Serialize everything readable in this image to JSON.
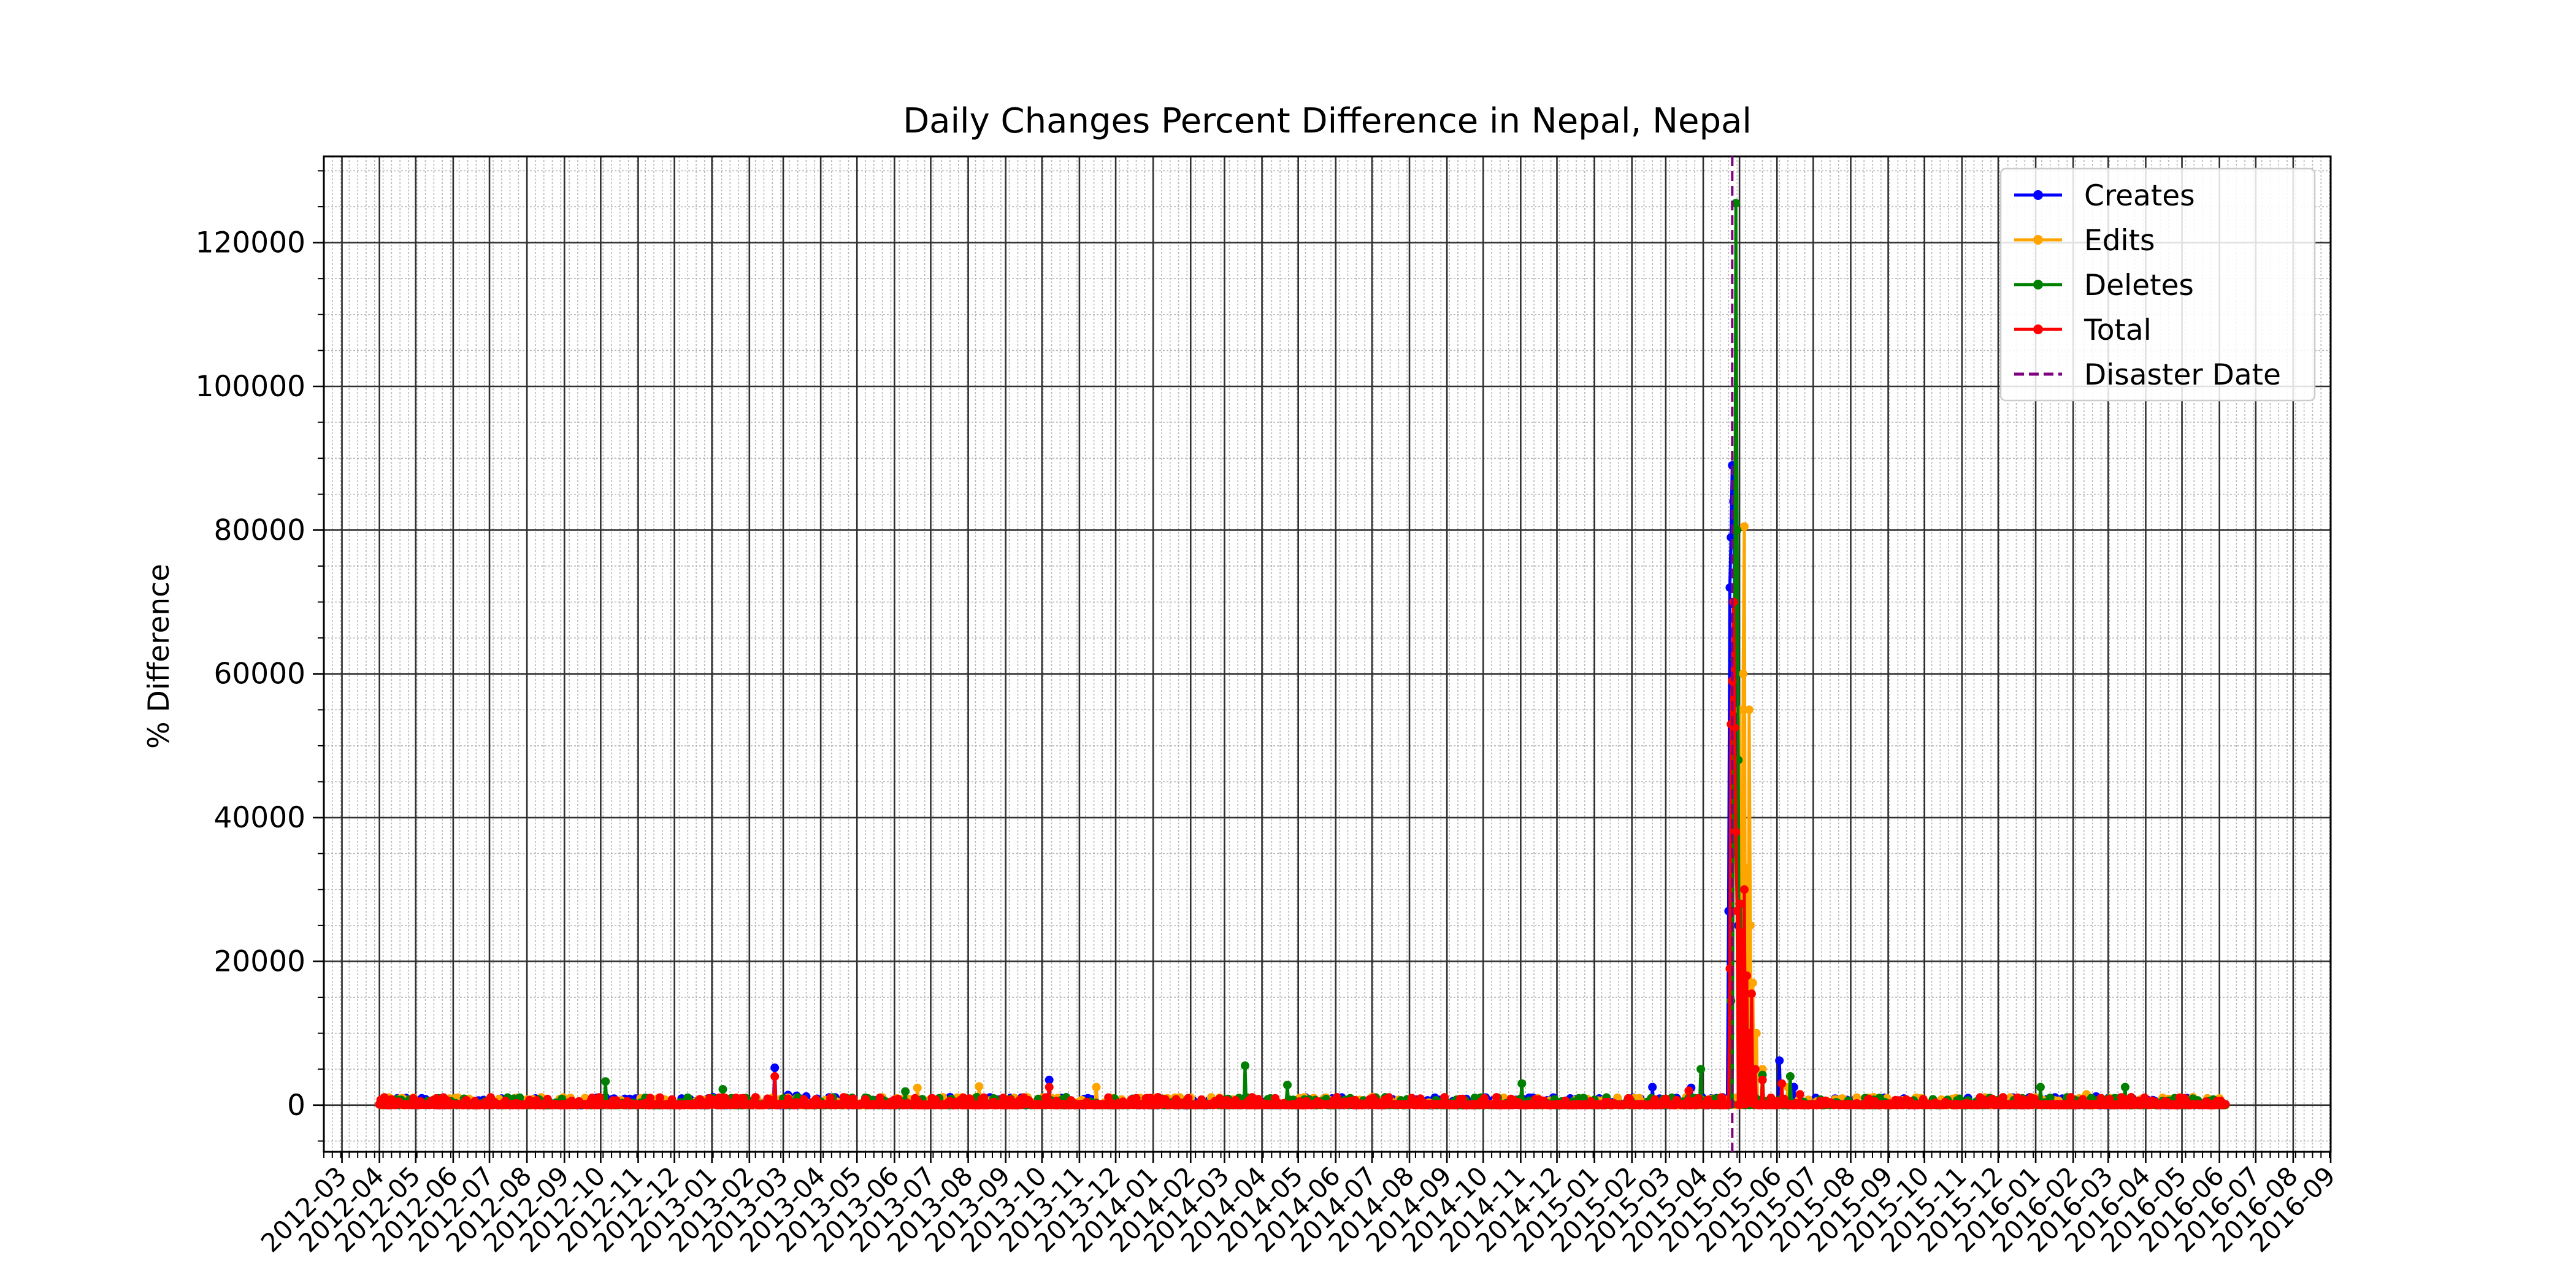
{
  "chart_data": {
    "type": "line",
    "title": "Daily Changes Percent Difference in Nepal, Nepal",
    "xlabel": "",
    "ylabel": "% Difference",
    "x_start": "2012-04-01",
    "x_end": "2016-06-06",
    "xlim": [
      "2012-02-15",
      "2016-09-01"
    ],
    "ylim": [
      -6500,
      132000
    ],
    "x_ticks": [
      "2012-03",
      "2012-04",
      "2012-05",
      "2012-06",
      "2012-07",
      "2012-08",
      "2012-09",
      "2012-10",
      "2012-11",
      "2012-12",
      "2013-01",
      "2013-02",
      "2013-03",
      "2013-04",
      "2013-05",
      "2013-06",
      "2013-07",
      "2013-08",
      "2013-09",
      "2013-10",
      "2013-11",
      "2013-12",
      "2014-01",
      "2014-02",
      "2014-03",
      "2014-04",
      "2014-05",
      "2014-06",
      "2014-07",
      "2014-08",
      "2014-09",
      "2014-10",
      "2014-11",
      "2014-12",
      "2015-01",
      "2015-02",
      "2015-03",
      "2015-04",
      "2015-05",
      "2015-06",
      "2015-07",
      "2015-08",
      "2015-09",
      "2015-10",
      "2015-11",
      "2015-12",
      "2016-01",
      "2016-02",
      "2016-03",
      "2016-04",
      "2016-05",
      "2016-06",
      "2016-07",
      "2016-08",
      "2016-09"
    ],
    "y_ticks": [
      0,
      20000,
      40000,
      60000,
      80000,
      100000,
      120000
    ],
    "disaster_date": "2015-04-25",
    "grid": true,
    "legend_position": "upper right",
    "series": [
      {
        "name": "Creates",
        "color": "#0000ff",
        "peaks": [
          {
            "date": "2012-08-03",
            "value": 700
          },
          {
            "date": "2013-02-22",
            "value": 5200
          },
          {
            "date": "2013-03-05",
            "value": 1400
          },
          {
            "date": "2013-03-12",
            "value": 1300
          },
          {
            "date": "2013-03-20",
            "value": 1200
          },
          {
            "date": "2013-10-07",
            "value": 3500
          },
          {
            "date": "2015-02-18",
            "value": 2500
          },
          {
            "date": "2015-03-22",
            "value": 2400
          },
          {
            "date": "2015-04-22",
            "value": 27000
          },
          {
            "date": "2015-04-23",
            "value": 72000
          },
          {
            "date": "2015-04-24",
            "value": 79000
          },
          {
            "date": "2015-04-25",
            "value": 89000
          },
          {
            "date": "2015-04-26",
            "value": 84000
          },
          {
            "date": "2015-04-27",
            "value": 70000
          },
          {
            "date": "2015-04-28",
            "value": 52000
          },
          {
            "date": "2015-04-29",
            "value": 35000
          },
          {
            "date": "2015-04-30",
            "value": 25000
          },
          {
            "date": "2015-05-02",
            "value": 17000
          },
          {
            "date": "2015-05-05",
            "value": 12000
          },
          {
            "date": "2015-05-08",
            "value": 8000
          },
          {
            "date": "2015-05-12",
            "value": 5000
          },
          {
            "date": "2015-05-20",
            "value": 3500
          },
          {
            "date": "2015-06-03",
            "value": 6200
          },
          {
            "date": "2015-06-15",
            "value": 2500
          },
          {
            "date": "2016-02-20",
            "value": 1200
          },
          {
            "date": "2016-05-10",
            "value": 1000
          }
        ]
      },
      {
        "name": "Edits",
        "color": "#ffa500",
        "peaks": [
          {
            "date": "2013-06-20",
            "value": 2400
          },
          {
            "date": "2013-08-10",
            "value": 2600
          },
          {
            "date": "2013-11-15",
            "value": 2500
          },
          {
            "date": "2015-05-01",
            "value": 55000
          },
          {
            "date": "2015-05-04",
            "value": 60000
          },
          {
            "date": "2015-05-05",
            "value": 80500
          },
          {
            "date": "2015-05-07",
            "value": 33000
          },
          {
            "date": "2015-05-09",
            "value": 55000
          },
          {
            "date": "2015-05-10",
            "value": 25000
          },
          {
            "date": "2015-05-12",
            "value": 17000
          },
          {
            "date": "2015-05-15",
            "value": 10000
          },
          {
            "date": "2015-05-20",
            "value": 5000
          },
          {
            "date": "2015-06-10",
            "value": 2500
          },
          {
            "date": "2016-02-12",
            "value": 1500
          }
        ]
      },
      {
        "name": "Deletes",
        "color": "#008000",
        "peaks": [
          {
            "date": "2012-10-05",
            "value": 3300
          },
          {
            "date": "2013-01-10",
            "value": 2200
          },
          {
            "date": "2013-06-10",
            "value": 1900
          },
          {
            "date": "2014-03-18",
            "value": 5500
          },
          {
            "date": "2014-04-22",
            "value": 2800
          },
          {
            "date": "2014-11-02",
            "value": 3000
          },
          {
            "date": "2015-03-30",
            "value": 5000
          },
          {
            "date": "2015-04-24",
            "value": 14500
          },
          {
            "date": "2015-04-26",
            "value": 48000
          },
          {
            "date": "2015-04-27",
            "value": 62000
          },
          {
            "date": "2015-04-28",
            "value": 125500
          },
          {
            "date": "2015-04-29",
            "value": 80000
          },
          {
            "date": "2015-04-30",
            "value": 48000
          },
          {
            "date": "2015-05-02",
            "value": 28000
          },
          {
            "date": "2015-05-04",
            "value": 11000
          },
          {
            "date": "2015-05-07",
            "value": 7500
          },
          {
            "date": "2015-05-12",
            "value": 5000
          },
          {
            "date": "2015-05-20",
            "value": 4200
          },
          {
            "date": "2015-06-12",
            "value": 4000
          },
          {
            "date": "2016-01-05",
            "value": 2500
          },
          {
            "date": "2016-03-15",
            "value": 2500
          }
        ]
      },
      {
        "name": "Total",
        "color": "#ff0000",
        "peaks": [
          {
            "date": "2013-02-22",
            "value": 4000
          },
          {
            "date": "2013-10-07",
            "value": 2500
          },
          {
            "date": "2015-03-20",
            "value": 2000
          },
          {
            "date": "2015-04-23",
            "value": 19000
          },
          {
            "date": "2015-04-24",
            "value": 53000
          },
          {
            "date": "2015-04-25",
            "value": 59000
          },
          {
            "date": "2015-04-26",
            "value": 70000
          },
          {
            "date": "2015-04-27",
            "value": 52500
          },
          {
            "date": "2015-04-28",
            "value": 38000
          },
          {
            "date": "2015-04-29",
            "value": 27000
          },
          {
            "date": "2015-05-01",
            "value": 28000
          },
          {
            "date": "2015-05-03",
            "value": 24000
          },
          {
            "date": "2015-05-05",
            "value": 30000
          },
          {
            "date": "2015-05-07",
            "value": 18000
          },
          {
            "date": "2015-05-09",
            "value": 10000
          },
          {
            "date": "2015-05-11",
            "value": 15500
          },
          {
            "date": "2015-05-14",
            "value": 5000
          },
          {
            "date": "2015-05-20",
            "value": 3500
          },
          {
            "date": "2015-06-05",
            "value": 3000
          },
          {
            "date": "2015-06-20",
            "value": 1500
          }
        ]
      }
    ],
    "legend": [
      "Creates",
      "Edits",
      "Deletes",
      "Total",
      "Disaster Date"
    ],
    "disaster_color": "#800080"
  }
}
